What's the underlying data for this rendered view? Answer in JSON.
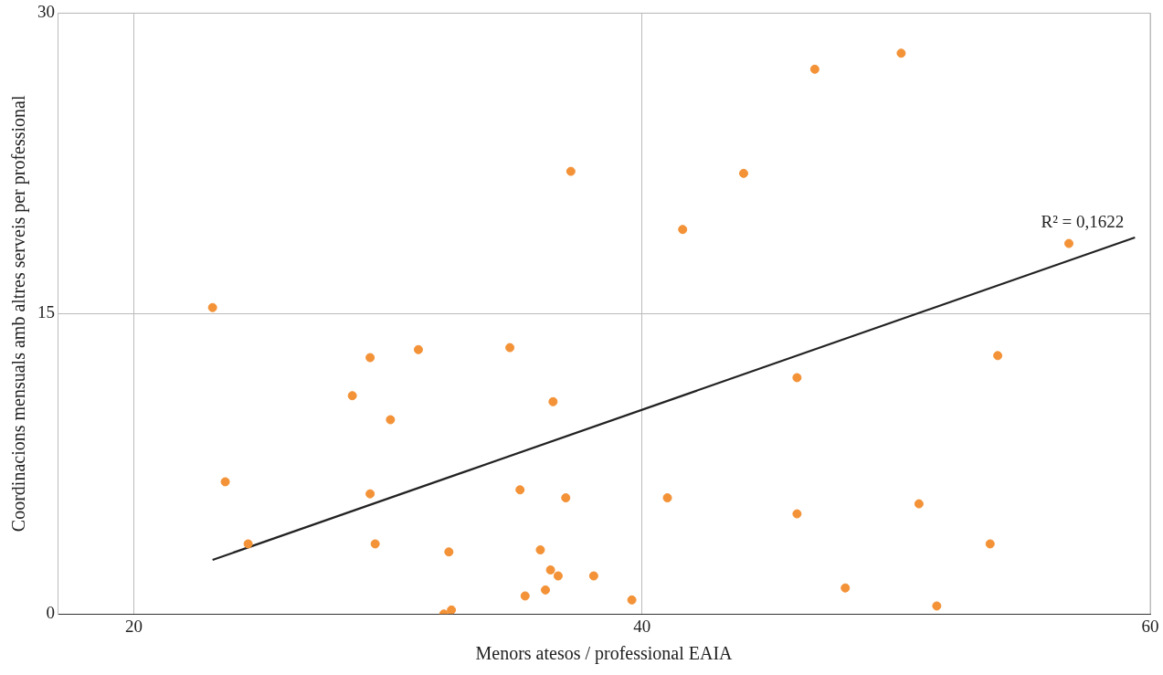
{
  "chart_data": {
    "type": "scatter",
    "xlabel": "Menors atesos / professional EAIA",
    "ylabel": "Coordinacions mensuals amb altres serveis per professional",
    "xlim": [
      17,
      60
    ],
    "xticks": [
      20,
      40,
      60
    ],
    "ylim": [
      0,
      30
    ],
    "yticks": [
      0,
      15,
      30
    ],
    "grid": true,
    "legend": false,
    "marker": "circle",
    "series": [
      {
        "color": "#f39237",
        "x": [
          23.1,
          23.6,
          24.5,
          28.6,
          29.3,
          29.3,
          29.5,
          30.1,
          31.2,
          32.2,
          32.4,
          32.5,
          34.8,
          35.2,
          35.4,
          36.0,
          36.2,
          36.4,
          36.5,
          36.7,
          37.0,
          37.2,
          38.1,
          39.6,
          41.0,
          41.6,
          44.0,
          46.1,
          46.1,
          46.8,
          48.0,
          50.2,
          50.9,
          51.6,
          53.7,
          54.0,
          56.8
        ],
        "values": [
          15.3,
          6.6,
          3.5,
          10.9,
          12.8,
          6.0,
          3.5,
          9.7,
          13.2,
          0.0,
          3.1,
          0.2,
          13.3,
          6.2,
          0.9,
          3.2,
          1.2,
          2.2,
          10.6,
          1.9,
          5.8,
          22.1,
          1.9,
          0.7,
          5.8,
          19.2,
          22.0,
          5.0,
          11.8,
          27.2,
          1.3,
          28.0,
          5.5,
          0.4,
          3.5,
          12.9,
          18.5
        ]
      },
      {
        "type": "line",
        "color": "#222222",
        "marker": "none",
        "x": [
          23.1,
          59.4
        ],
        "values": [
          2.7,
          18.8
        ]
      }
    ],
    "annotations": [
      "R² = 0,1622"
    ]
  }
}
